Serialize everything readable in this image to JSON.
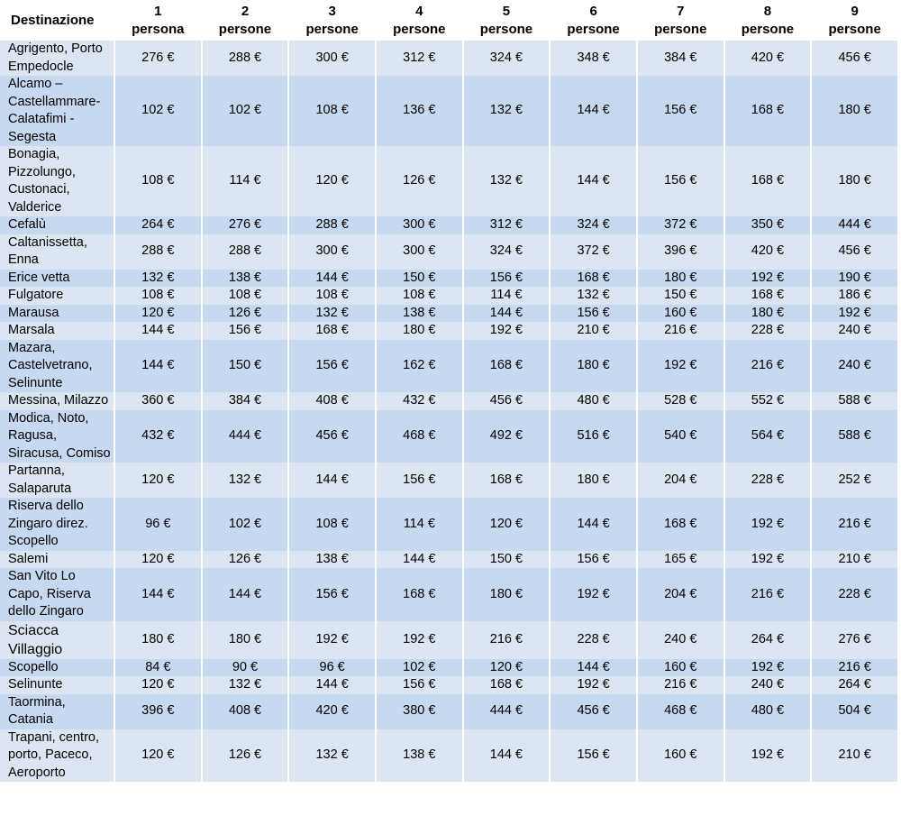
{
  "headers": [
    {
      "num": "",
      "label": "Destinazione"
    },
    {
      "num": "1",
      "label": "persona"
    },
    {
      "num": "2",
      "label": "persone"
    },
    {
      "num": "3",
      "label": "persone"
    },
    {
      "num": "4",
      "label": "persone"
    },
    {
      "num": "5",
      "label": "persone"
    },
    {
      "num": "6",
      "label": "persone"
    },
    {
      "num": "7",
      "label": "persone"
    },
    {
      "num": "8",
      "label": "persone"
    },
    {
      "num": "9",
      "label": "persone"
    }
  ],
  "rows": [
    {
      "dest": [
        "Agrigento, Porto",
        "Empedocle"
      ],
      "prices": [
        "276 €",
        "288 €",
        "300 €",
        "312 €",
        "324 €",
        "348 €",
        "384 €",
        "420 €",
        "456 €"
      ]
    },
    {
      "dest": [
        "Alcamo –",
        "Castellammare-",
        "Calatafimi -",
        "Segesta"
      ],
      "prices": [
        "102 €",
        "102 €",
        "108 €",
        "136 €",
        "132 €",
        "144 €",
        "156 €",
        "168 €",
        "180 €"
      ]
    },
    {
      "dest": [
        "Bonagia,",
        "Pizzolungo,",
        "Custonaci,",
        "Valderice"
      ],
      "prices": [
        "108 €",
        "114 €",
        "120 €",
        "126 €",
        "132 €",
        "144 €",
        "156 €",
        "168 €",
        "180 €"
      ]
    },
    {
      "dest": [
        "Cefalù"
      ],
      "prices": [
        "264 €",
        "276 €",
        "288 €",
        "300 €",
        "312 €",
        "324 €",
        "372 €",
        "350 €",
        "444 €"
      ]
    },
    {
      "dest": [
        "Caltanissetta,",
        "Enna"
      ],
      "prices": [
        "288 €",
        "288 €",
        "300 €",
        "300 €",
        "324 €",
        "372 €",
        "396 €",
        "420 €",
        "456 €"
      ]
    },
    {
      "dest": [
        "Erice vetta"
      ],
      "prices": [
        "132 €",
        "138 €",
        "144 €",
        "150 €",
        "156 €",
        "168 €",
        "180 €",
        "192 €",
        "190 €"
      ]
    },
    {
      "dest": [
        "Fulgatore"
      ],
      "prices": [
        "108 €",
        "108 €",
        "108 €",
        "108 €",
        "114 €",
        "132 €",
        "150 €",
        "168 €",
        "186 €"
      ]
    },
    {
      "dest": [
        "Marausa"
      ],
      "prices": [
        "120 €",
        "126 €",
        "132 €",
        "138 €",
        "144 €",
        "156 €",
        "160 €",
        "180 €",
        "192 €"
      ]
    },
    {
      "dest": [
        "Marsala"
      ],
      "prices": [
        "144 €",
        "156 €",
        "168 €",
        "180 €",
        "192 €",
        "210 €",
        "216 €",
        "228 €",
        "240 €"
      ]
    },
    {
      "dest": [
        "Mazara,",
        "Castelvetrano,",
        "Selinunte"
      ],
      "prices": [
        "144 €",
        "150 €",
        "156 €",
        "162 €",
        "168 €",
        "180 €",
        "192 €",
        "216 €",
        "240 €"
      ]
    },
    {
      "dest": [
        "Messina, Milazzo"
      ],
      "prices": [
        "360 €",
        "384 €",
        "408 €",
        "432 €",
        "456 €",
        "480 €",
        "528 €",
        "552 €",
        "588 €"
      ]
    },
    {
      "dest": [
        "Modica, Noto,",
        "Ragusa,",
        "Siracusa, Comiso"
      ],
      "prices": [
        "432 €",
        "444 €",
        "456 €",
        "468 €",
        "492 €",
        "516 €",
        "540 €",
        "564 €",
        "588 €"
      ]
    },
    {
      "dest": [
        "Partanna,",
        "Salaparuta"
      ],
      "prices": [
        "120 €",
        "132 €",
        "144 €",
        "156 €",
        "168 €",
        "180 €",
        "204 €",
        "228 €",
        "252 €"
      ]
    },
    {
      "dest": [
        "Riserva dello",
        "Zingaro direz.",
        "Scopello"
      ],
      "prices": [
        "96 €",
        "102 €",
        "108 €",
        "114 €",
        "120 €",
        "144 €",
        "168 €",
        "192 €",
        "216 €"
      ]
    },
    {
      "dest": [
        "Salemi"
      ],
      "prices": [
        "120 €",
        "126 €",
        "138 €",
        "144 €",
        "150 €",
        "156 €",
        "165 €",
        "192 €",
        "210 €"
      ]
    },
    {
      "dest": [
        "San Vito Lo",
        "Capo, Riserva",
        "dello Zingaro"
      ],
      "prices": [
        "144 €",
        "144 €",
        "156 €",
        "168 €",
        "180 €",
        "192 €",
        "204 €",
        "216 €",
        "228 €"
      ]
    },
    {
      "dest": [
        "Sciacca",
        "Villaggio"
      ],
      "prices": [
        "180 €",
        "180 €",
        "192 €",
        "192 €",
        "216 €",
        "228 €",
        "240 €",
        "264 €",
        "276 €"
      ]
    },
    {
      "dest": [
        "Scopello"
      ],
      "prices": [
        "84 €",
        "90 €",
        "96 €",
        "102 €",
        "120 €",
        "144 €",
        "160 €",
        "192 €",
        "216 €"
      ]
    },
    {
      "dest": [
        "Selinunte"
      ],
      "prices": [
        "120 €",
        "132 €",
        "144 €",
        "156 €",
        "168 €",
        "192 €",
        "216 €",
        "240 €",
        "264 €"
      ]
    },
    {
      "dest": [
        "Taormina,",
        "Catania"
      ],
      "prices": [
        "396 €",
        "408 €",
        "420 €",
        "380 €",
        "444 €",
        "456 €",
        "468 €",
        "480 €",
        "504 €"
      ]
    },
    {
      "dest": [
        "Trapani, centro,",
        "porto, Paceco,",
        "Aeroporto"
      ],
      "prices": [
        "120 €",
        "126 €",
        "132 €",
        "138 €",
        "144 €",
        "156 €",
        "160 €",
        "192 €",
        "210 €"
      ]
    }
  ]
}
